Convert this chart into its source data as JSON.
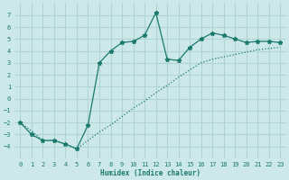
{
  "xlabel": "Humidex (Indice chaleur)",
  "x_line1": [
    0,
    1,
    2,
    3,
    4,
    5,
    6,
    7,
    8,
    9,
    10,
    11,
    12,
    13,
    14,
    15,
    16,
    17,
    18,
    19,
    20,
    21,
    22,
    23
  ],
  "y_line1": [
    -2,
    -3,
    -3.5,
    -3.5,
    -3.8,
    -4.2,
    -2.2,
    3.0,
    4.0,
    4.7,
    4.8,
    5.3,
    7.2,
    3.3,
    3.2,
    4.3,
    5.0,
    5.5,
    5.3,
    5.0,
    4.7,
    4.8,
    4.8,
    4.7
  ],
  "x_line2": [
    0,
    1,
    2,
    3,
    4,
    5,
    6,
    7,
    8,
    9,
    10,
    11,
    12,
    13,
    14,
    15,
    16,
    17,
    18,
    19,
    20,
    21,
    22,
    23
  ],
  "y_line2": [
    -2.0,
    -2.7,
    -3.5,
    -3.5,
    -3.8,
    -4.2,
    -3.5,
    -2.8,
    -2.2,
    -1.5,
    -0.8,
    -0.2,
    0.5,
    1.1,
    1.8,
    2.4,
    3.0,
    3.3,
    3.5,
    3.7,
    3.9,
    4.1,
    4.2,
    4.3
  ],
  "line_color": "#1a7a6e",
  "bg_color": "#cce8e8",
  "grid_color": "#aed4d4",
  "ylim": [
    -5,
    8
  ],
  "xlim": [
    -0.5,
    23.5
  ],
  "yticks": [
    -4,
    -3,
    -2,
    -1,
    0,
    1,
    2,
    3,
    4,
    5,
    6,
    7
  ],
  "xticks": [
    0,
    1,
    2,
    3,
    4,
    5,
    6,
    7,
    8,
    9,
    10,
    11,
    12,
    13,
    14,
    15,
    16,
    17,
    18,
    19,
    20,
    21,
    22,
    23
  ]
}
